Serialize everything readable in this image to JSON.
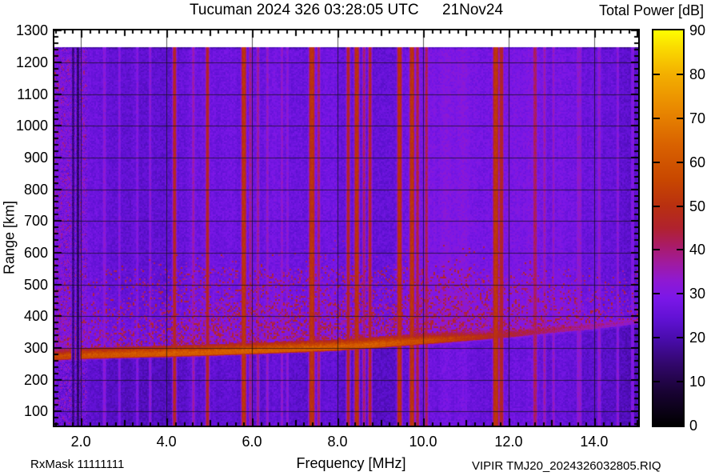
{
  "footer": {
    "rx_mask": "RxMask 11111111",
    "file_label": "VIPIR  TMJ20_2024326032805.RIQ"
  },
  "chart_data": {
    "type": "heatmap",
    "title": "Tucuman 2024 326 03:28:05 UTC",
    "date_label": "21Nov24",
    "xlabel": "Frequency [MHz]",
    "ylabel": "Range [km]",
    "colorbar_label": "Total Power [dB]",
    "x_range_mhz": [
      1.38,
      15.03
    ],
    "y_range_km": [
      55,
      1301
    ],
    "data_top_km": 1248,
    "x_minor_step_mhz": 0.2,
    "y_minor_step_km": 20,
    "grid": true,
    "x_ticks": [
      {
        "v": 2,
        "label": "2.0"
      },
      {
        "v": 4,
        "label": "4.0"
      },
      {
        "v": 6,
        "label": "6.0"
      },
      {
        "v": 8,
        "label": "8.0"
      },
      {
        "v": 10,
        "label": "10.0"
      },
      {
        "v": 12,
        "label": "12.0"
      },
      {
        "v": 14,
        "label": "14.0"
      }
    ],
    "y_ticks": [
      {
        "v": 100,
        "label": "100"
      },
      {
        "v": 200,
        "label": "200"
      },
      {
        "v": 300,
        "label": "300"
      },
      {
        "v": 400,
        "label": "400"
      },
      {
        "v": 500,
        "label": "500"
      },
      {
        "v": 600,
        "label": "600"
      },
      {
        "v": 700,
        "label": "700"
      },
      {
        "v": 800,
        "label": "800"
      },
      {
        "v": 900,
        "label": "900"
      },
      {
        "v": 1000,
        "label": "1000"
      },
      {
        "v": 1100,
        "label": "1100"
      },
      {
        "v": 1200,
        "label": "1200"
      },
      {
        "v": 1300,
        "label": "1300"
      }
    ],
    "colorbar": {
      "min": 0,
      "max": 90,
      "ticks": [
        {
          "v": 0,
          "label": "0"
        },
        {
          "v": 10,
          "label": "10"
        },
        {
          "v": 20,
          "label": "20"
        },
        {
          "v": 30,
          "label": "30"
        },
        {
          "v": 40,
          "label": "40"
        },
        {
          "v": 50,
          "label": "50"
        },
        {
          "v": 60,
          "label": "60"
        },
        {
          "v": 70,
          "label": "70"
        },
        {
          "v": 80,
          "label": "80"
        },
        {
          "v": 90,
          "label": "90"
        }
      ],
      "palette": [
        [
          0,
          "#000000"
        ],
        [
          8,
          "#1a0336"
        ],
        [
          14,
          "#32076c"
        ],
        [
          20,
          "#4a0cae"
        ],
        [
          24,
          "#5f11d2"
        ],
        [
          29,
          "#7b17e8"
        ],
        [
          33,
          "#8f19d2"
        ],
        [
          37,
          "#a01b9f"
        ],
        [
          41,
          "#aa1b66"
        ],
        [
          45,
          "#b0222e"
        ],
        [
          50,
          "#b93010"
        ],
        [
          56,
          "#c84700"
        ],
        [
          64,
          "#d96200"
        ],
        [
          72,
          "#e98800"
        ],
        [
          80,
          "#f3af00"
        ],
        [
          86,
          "#fadb00"
        ],
        [
          90,
          "#fdfd00"
        ]
      ]
    },
    "background_db": 28,
    "noise_seed": 1337,
    "left_noise_max_mhz": 2.15,
    "rfi_stripes": [
      {
        "f": 2.55,
        "db": 32,
        "w": 3
      },
      {
        "f": 2.9,
        "db": 31,
        "w": 2
      },
      {
        "f": 3.32,
        "db": 31,
        "w": 2
      },
      {
        "f": 3.62,
        "db": 32,
        "w": 2
      },
      {
        "f": 4.19,
        "db": 47,
        "w": 2
      },
      {
        "f": 4.63,
        "db": 36,
        "w": 2
      },
      {
        "f": 4.96,
        "db": 46,
        "w": 2
      },
      {
        "f": 5.81,
        "db": 51,
        "w": 3
      },
      {
        "f": 5.96,
        "db": 38,
        "w": 2
      },
      {
        "f": 6.14,
        "db": 37,
        "w": 2
      },
      {
        "f": 6.36,
        "db": 34,
        "w": 2
      },
      {
        "f": 6.7,
        "db": 33,
        "w": 2
      },
      {
        "f": 6.83,
        "db": 32,
        "w": 2
      },
      {
        "f": 7.4,
        "db": 51,
        "w": 4
      },
      {
        "f": 7.56,
        "db": 40,
        "w": 2
      },
      {
        "f": 8.25,
        "db": 46,
        "w": 2
      },
      {
        "f": 8.45,
        "db": 50,
        "w": 3
      },
      {
        "f": 8.62,
        "db": 40,
        "w": 2
      },
      {
        "f": 8.76,
        "db": 45,
        "w": 2
      },
      {
        "f": 9.45,
        "db": 50,
        "w": 3
      },
      {
        "f": 9.74,
        "db": 51,
        "w": 3
      },
      {
        "f": 9.87,
        "db": 44,
        "w": 2
      },
      {
        "f": 10.08,
        "db": 42,
        "w": 2
      },
      {
        "f": 11.7,
        "db": 51,
        "w": 4
      },
      {
        "f": 11.83,
        "db": 46,
        "w": 3
      },
      {
        "f": 12.62,
        "db": 41,
        "w": 3
      },
      {
        "f": 12.84,
        "db": 36,
        "w": 2
      },
      {
        "f": 13.05,
        "db": 34,
        "w": 2
      },
      {
        "f": 13.65,
        "db": 33,
        "w": 5
      },
      {
        "f": 14.12,
        "db": 33,
        "w": 3
      },
      {
        "f": 14.55,
        "db": 32,
        "w": 2
      },
      {
        "f": 14.9,
        "db": 30,
        "w": 3
      }
    ],
    "dark_columns": [
      {
        "f": 1.82,
        "db": 13,
        "w": 2
      },
      {
        "f": 1.93,
        "db": 10,
        "w": 2
      }
    ],
    "f_layer_trace": [
      [
        1.4,
        266
      ],
      [
        2,
        270
      ],
      [
        3,
        274
      ],
      [
        4,
        277
      ],
      [
        5,
        281
      ],
      [
        6,
        286
      ],
      [
        7,
        291
      ],
      [
        8,
        297
      ],
      [
        9,
        306
      ],
      [
        10,
        316
      ],
      [
        10.5,
        321
      ],
      [
        11,
        326
      ],
      [
        11.5,
        331
      ],
      [
        12,
        336
      ],
      [
        12.5,
        343
      ],
      [
        13,
        350
      ],
      [
        13.5,
        356
      ],
      [
        14,
        362
      ],
      [
        14.5,
        370
      ],
      [
        15,
        378
      ]
    ],
    "trace_peak_db": [
      [
        1.4,
        54
      ],
      [
        2,
        58
      ],
      [
        3,
        60
      ],
      [
        4,
        61
      ],
      [
        6,
        62
      ],
      [
        8,
        62
      ],
      [
        9,
        61
      ],
      [
        10,
        57
      ],
      [
        10.8,
        52
      ],
      [
        11.5,
        47
      ],
      [
        12,
        44
      ],
      [
        13,
        40
      ],
      [
        14,
        36
      ],
      [
        15,
        33
      ]
    ],
    "spread_top_km": [
      [
        1.4,
        500
      ],
      [
        3,
        545
      ],
      [
        5,
        580
      ],
      [
        8,
        600
      ],
      [
        11,
        600
      ],
      [
        13,
        560
      ],
      [
        15,
        520
      ]
    ],
    "spread_density": [
      [
        1.4,
        0.45
      ],
      [
        3,
        0.7
      ],
      [
        5,
        1.0
      ],
      [
        11,
        1.0
      ],
      [
        12.5,
        0.7
      ],
      [
        14,
        0.45
      ],
      [
        15,
        0.35
      ]
    ]
  }
}
